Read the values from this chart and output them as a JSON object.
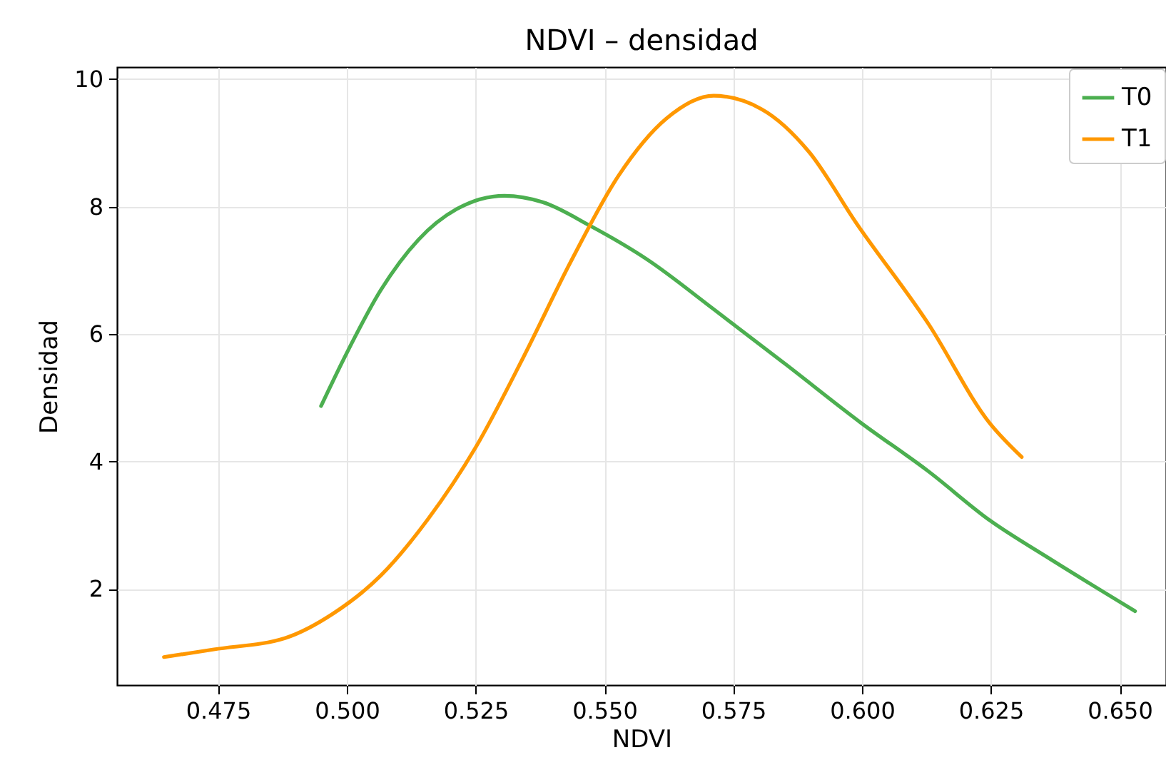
{
  "chart_data": {
    "type": "line",
    "title": "NDVI – densidad",
    "xlabel": "NDVI",
    "ylabel": "Densidad",
    "xlim": [
      0.4554,
      0.659
    ],
    "ylim": [
      0.49,
      10.19
    ],
    "xticks": [
      0.475,
      {
        "value": 0.5,
        "label": "0.500"
      },
      0.525,
      {
        "value": 0.55,
        "label": "0.550"
      },
      0.575,
      {
        "value": 0.6,
        "label": "0.600"
      },
      0.625,
      {
        "value": 0.65,
        "label": "0.650"
      }
    ],
    "yticks": [
      2,
      4,
      6,
      8,
      10
    ],
    "grid": true,
    "legend": "top right",
    "series": [
      {
        "name": "T0",
        "color": "#4caf50",
        "x": [
          0.495,
          0.5001,
          0.5066,
          0.5139,
          0.5213,
          0.5306,
          0.538,
          0.5472,
          0.5583,
          0.5712,
          0.5851,
          0.5999,
          0.6128,
          0.6249,
          0.6359,
          0.653
        ],
        "values": [
          4.87,
          5.72,
          6.69,
          7.48,
          7.96,
          8.17,
          8.07,
          7.7,
          7.17,
          6.39,
          5.53,
          4.6,
          3.85,
          3.07,
          2.5,
          1.65
        ]
      },
      {
        "name": "T1",
        "color": "#ff9800",
        "x": [
          0.4645,
          0.4742,
          0.4881,
          0.4973,
          0.5066,
          0.5158,
          0.525,
          0.5343,
          0.5435,
          0.5527,
          0.562,
          0.5712,
          0.5805,
          0.5897,
          0.5989,
          0.6128,
          0.6248,
          0.631
        ],
        "values": [
          0.93,
          1.05,
          1.23,
          1.61,
          2.21,
          3.1,
          4.22,
          5.64,
          7.14,
          8.48,
          9.38,
          9.74,
          9.53,
          8.86,
          7.74,
          6.17,
          4.6,
          4.07
        ]
      }
    ]
  }
}
